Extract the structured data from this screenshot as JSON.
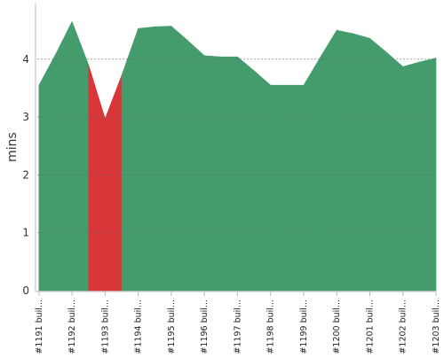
{
  "chart_data": {
    "type": "area",
    "title": "",
    "xlabel": "",
    "ylabel": "mins",
    "categories": [
      "#1191 buil...",
      "#1192 buil...",
      "#1193 buil...",
      "#1194 buil...",
      "#1195 buil...",
      "#1196 buil...",
      "#1197 buil...",
      "#1198 buil...",
      "#1199 buil...",
      "#1200 buil...",
      "#1201 buil...",
      "#1202 buil...",
      "#1203 buil..."
    ],
    "x": [
      0,
      0.5,
      1,
      1.5,
      2,
      2.5,
      3,
      3.5,
      4,
      4.5,
      5,
      5.5,
      6,
      6.5,
      7,
      7.5,
      8,
      8.5,
      9,
      9.5,
      10,
      10.5,
      11,
      11.5,
      12
    ],
    "values": [
      3.55,
      4.08,
      4.65,
      3.9,
      2.97,
      3.72,
      4.53,
      4.56,
      4.57,
      4.32,
      4.06,
      4.04,
      4.04,
      3.8,
      3.55,
      3.55,
      3.55,
      4.03,
      4.5,
      4.44,
      4.36,
      4.12,
      3.87,
      3.95,
      4.02
    ],
    "segment_status": [
      "pass",
      "pass",
      "pass",
      "fail",
      "fail",
      "pass",
      "pass",
      "pass",
      "pass",
      "pass",
      "pass",
      "pass",
      "pass",
      "pass",
      "pass",
      "pass",
      "pass",
      "pass",
      "pass",
      "pass",
      "pass",
      "pass",
      "pass",
      "pass"
    ],
    "ylim": [
      0,
      4.9
    ],
    "xlim": [
      -0.05,
      12
    ],
    "yticks": [
      0,
      1,
      2,
      3,
      4
    ],
    "grid": true,
    "colors": {
      "pass": "#449c6c",
      "fail": "#d9363a",
      "grid": "#666666",
      "axis": "#bbbbbb",
      "label": "#333333"
    }
  }
}
